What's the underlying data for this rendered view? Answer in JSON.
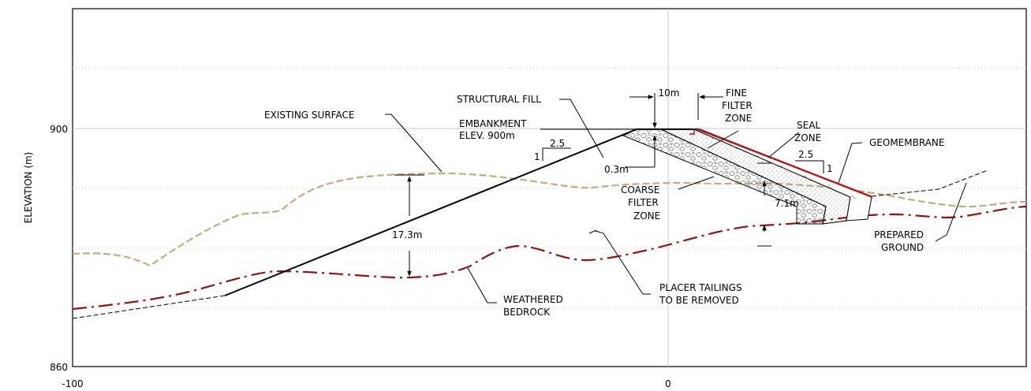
{
  "axes": {
    "y_title": "ELEVATION (m)",
    "y_ticks": [
      "900",
      "860"
    ],
    "x_ticks": [
      "-100",
      "0"
    ]
  },
  "labels": {
    "existing_surface": "EXISTING SURFACE",
    "structural_fill": "STRUCTURAL FILL",
    "embankment_line1": "EMBANKMENT",
    "embankment_line2": "ELEV. 900m",
    "crest_width": "10m",
    "fine_filter": [
      "FINE",
      "FILTER",
      "ZONE"
    ],
    "seal_zone": [
      "SEAL",
      "ZONE"
    ],
    "geomembrane": "GEOMEMBRANE",
    "slope_left_run": "2.5",
    "slope_left_rise": "1",
    "slope_right_run": "2.5",
    "slope_right_rise": "1",
    "thickness_top": "0.3m",
    "coarse_filter": [
      "COARSE",
      "FILTER",
      "ZONE"
    ],
    "depth_bottom": "7.1m",
    "depth_left": "17.3m",
    "prepared_ground": [
      "PREPARED",
      "GROUND"
    ],
    "placer_tailings": [
      "PLACER TAILINGS",
      "TO BE REMOVED"
    ],
    "weathered_bedrock": [
      "WEATHERED",
      "BEDROCK"
    ]
  },
  "colors": {
    "existing_surface": "#c2ab85",
    "bedrock": "#8b1515",
    "geomembrane": "#b01818",
    "grid": "#c8c8c8",
    "ink": "#000000"
  }
}
